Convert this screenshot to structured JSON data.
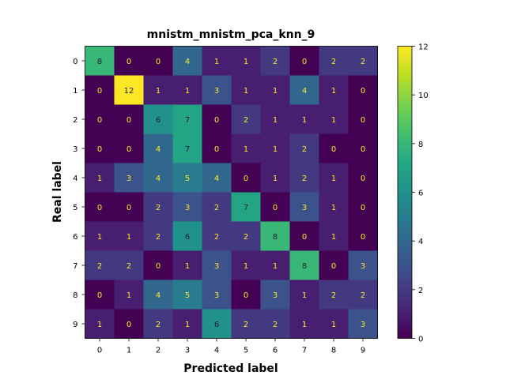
{
  "chart_data": {
    "type": "heatmap",
    "title": "mnistm_mnistm_pca_knn_9",
    "xlabel": "Predicted label",
    "ylabel": "Real label",
    "x_categories": [
      "0",
      "1",
      "2",
      "3",
      "4",
      "5",
      "6",
      "7",
      "8",
      "9"
    ],
    "y_categories": [
      "0",
      "1",
      "2",
      "3",
      "4",
      "5",
      "6",
      "7",
      "8",
      "9"
    ],
    "values": [
      [
        8,
        0,
        0,
        4,
        1,
        1,
        2,
        0,
        2,
        2
      ],
      [
        0,
        12,
        1,
        1,
        3,
        1,
        1,
        4,
        1,
        0
      ],
      [
        0,
        0,
        6,
        7,
        0,
        2,
        1,
        1,
        1,
        0
      ],
      [
        0,
        0,
        4,
        7,
        0,
        1,
        1,
        2,
        0,
        0
      ],
      [
        1,
        3,
        4,
        5,
        4,
        0,
        1,
        2,
        1,
        0
      ],
      [
        0,
        0,
        2,
        3,
        2,
        7,
        0,
        3,
        1,
        0
      ],
      [
        1,
        1,
        2,
        6,
        2,
        2,
        8,
        0,
        1,
        0
      ],
      [
        2,
        2,
        0,
        1,
        3,
        1,
        1,
        8,
        0,
        3
      ],
      [
        0,
        1,
        4,
        5,
        3,
        0,
        3,
        1,
        2,
        2
      ],
      [
        1,
        0,
        2,
        1,
        6,
        2,
        2,
        1,
        1,
        3
      ]
    ],
    "colorbar": {
      "min": 0,
      "max": 12,
      "ticks": [
        "0",
        "2",
        "4",
        "6",
        "8",
        "10",
        "12"
      ]
    },
    "colormap": "viridis",
    "text_colors": {
      "dark_cell": "#fde725",
      "light_cell": "#1f1f3a"
    }
  }
}
